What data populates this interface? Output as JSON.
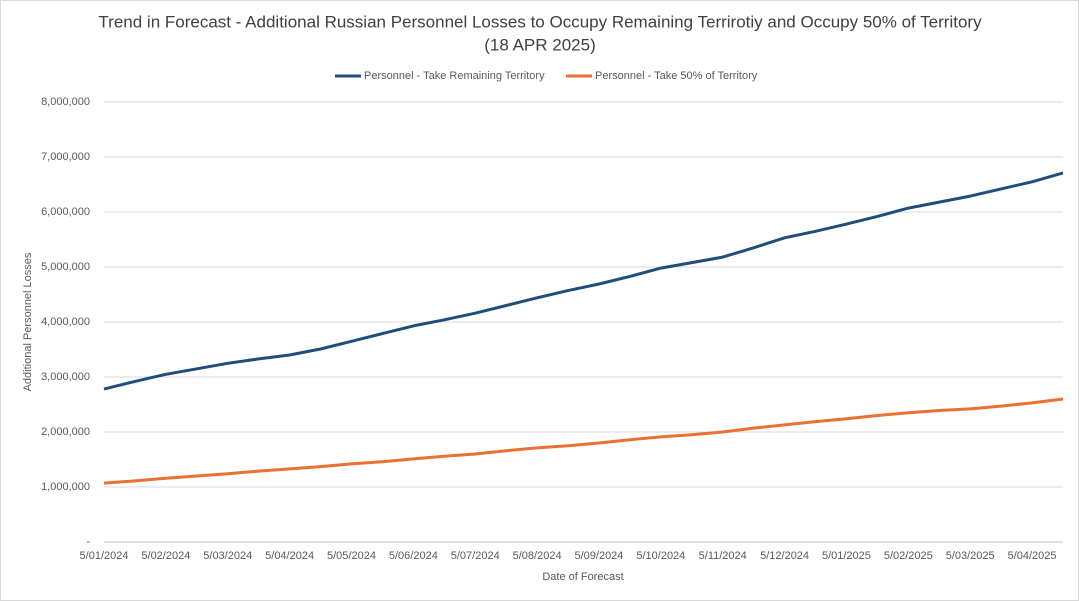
{
  "chart_data": {
    "type": "line",
    "title": "Trend in Forecast - Additional Russian Personnel Losses to Occupy Remaining Terrirotiy and Occupy 50% of Territory",
    "subtitle": "(18 APR 2025)",
    "x_label": "Date of Forecast",
    "y_label": "Additional Personnel Losses",
    "categories": [
      "5/01/2024",
      null,
      "5/02/2024",
      null,
      "5/03/2024",
      null,
      "5/04/2024",
      null,
      "5/05/2024",
      null,
      "5/06/2024",
      null,
      "5/07/2024",
      null,
      "5/08/2024",
      null,
      "5/09/2024",
      null,
      "5/10/2024",
      null,
      "5/11/2024",
      null,
      "5/12/2024",
      null,
      "5/01/2025",
      null,
      "5/02/2025",
      null,
      "5/03/2025",
      null,
      "5/04/2025",
      null
    ],
    "series": [
      {
        "name": "Personnel - Take Remaining Territory",
        "color": "#1f4e79",
        "values": [
          2780000,
          2920000,
          3050000,
          3150000,
          3250000,
          3330000,
          3400000,
          3510000,
          3650000,
          3790000,
          3930000,
          4040000,
          4160000,
          4300000,
          4440000,
          4570000,
          4690000,
          4830000,
          4980000,
          5080000,
          5180000,
          5350000,
          5530000,
          5650000,
          5780000,
          5920000,
          6070000,
          6180000,
          6290000,
          6420000,
          6550000,
          6710000
        ]
      },
      {
        "name": "Personnel - Take 50% of Territory",
        "color": "#e97132",
        "values": [
          1070000,
          1110000,
          1160000,
          1200000,
          1240000,
          1290000,
          1330000,
          1370000,
          1420000,
          1460000,
          1510000,
          1560000,
          1600000,
          1660000,
          1710000,
          1750000,
          1800000,
          1860000,
          1910000,
          1950000,
          2000000,
          2070000,
          2130000,
          2190000,
          2240000,
          2300000,
          2350000,
          2390000,
          2420000,
          2470000,
          2530000,
          2600000
        ]
      }
    ],
    "ylim": [
      0,
      8000000
    ],
    "yticks": [
      {
        "value": 0,
        "label": "-"
      },
      {
        "value": 1000000,
        "label": "1,000,000"
      },
      {
        "value": 2000000,
        "label": "2,000,000"
      },
      {
        "value": 3000000,
        "label": "3,000,000"
      },
      {
        "value": 4000000,
        "label": "4,000,000"
      },
      {
        "value": 5000000,
        "label": "5,000,000"
      },
      {
        "value": 6000000,
        "label": "6,000,000"
      },
      {
        "value": 7000000,
        "label": "7,000,000"
      },
      {
        "value": 8000000,
        "label": "8,000,000"
      }
    ],
    "grid": true,
    "legend": "top"
  }
}
